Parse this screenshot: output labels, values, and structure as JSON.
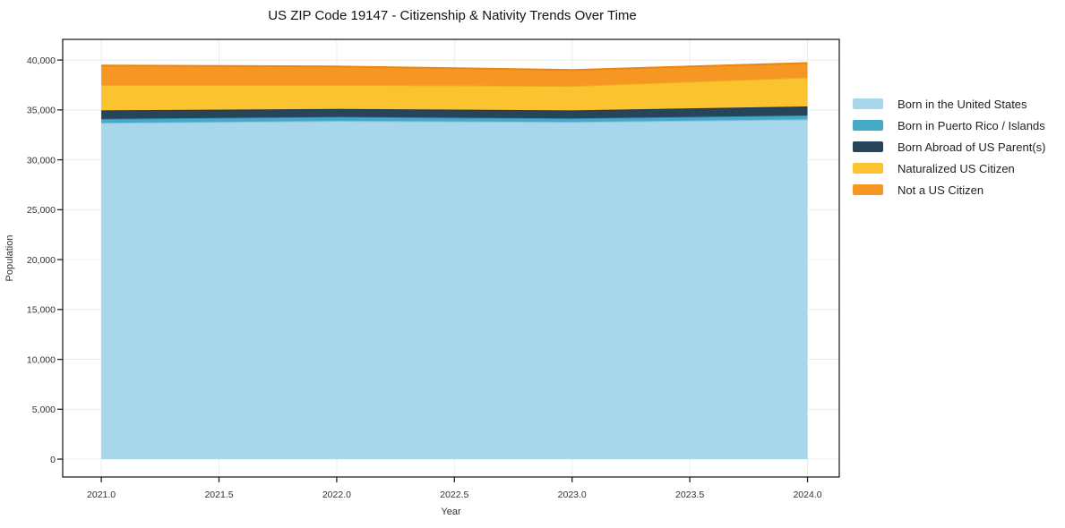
{
  "title": "US ZIP Code 19147 - Citizenship & Nativity Trends Over Time",
  "chart_data": {
    "type": "area",
    "stacked": true,
    "title": "US ZIP Code 19147 - Citizenship & Nativity Trends Over Time",
    "xlabel": "Year",
    "ylabel": "Population",
    "x": [
      2021,
      2022,
      2023,
      2024
    ],
    "series": [
      {
        "name": "Born in the United States",
        "color": "#a8d6ea",
        "edge": "#8cc3dd",
        "values": [
          33700,
          33900,
          33800,
          34050
        ]
      },
      {
        "name": "Born in Puerto Rico / Islands",
        "color": "#45aac8",
        "edge": "#3794b2",
        "values": [
          400,
          400,
          350,
          400
        ]
      },
      {
        "name": "Born Abroad of US Parent(s)",
        "color": "#27455a",
        "edge": "#1d3648",
        "values": [
          850,
          800,
          800,
          900
        ]
      },
      {
        "name": "Naturalized US Citizen",
        "color": "#fcc330",
        "edge": "#eeb01f",
        "values": [
          2550,
          2400,
          2450,
          2900
        ]
      },
      {
        "name": "Not a US Citizen",
        "color": "#f79723",
        "edge": "#ea8414",
        "values": [
          1950,
          1850,
          1600,
          1450
        ]
      }
    ],
    "totals": [
      39450,
      39350,
      39000,
      39700
    ],
    "x_ticks": [
      "2021.0",
      "2021.5",
      "2022.0",
      "2022.5",
      "2023.0",
      "2023.5",
      "2024.0"
    ],
    "x_tick_values": [
      2021,
      2021.5,
      2022,
      2022.5,
      2023,
      2023.5,
      2024
    ],
    "y_ticks": [
      "0",
      "5,000",
      "10,000",
      "15,000",
      "20,000",
      "25,000",
      "30,000",
      "35,000",
      "40,000"
    ],
    "y_tick_values": [
      0,
      5000,
      10000,
      15000,
      20000,
      25000,
      30000,
      35000,
      40000
    ],
    "xlim": [
      2020.836,
      2024.135
    ],
    "ylim": [
      -1790,
      42070
    ],
    "grid": true,
    "grid_color": "#ececec",
    "axis_color": "#222222",
    "tick_label_color": "#333333",
    "background_color": "#ffffff",
    "legend_position": "right"
  }
}
